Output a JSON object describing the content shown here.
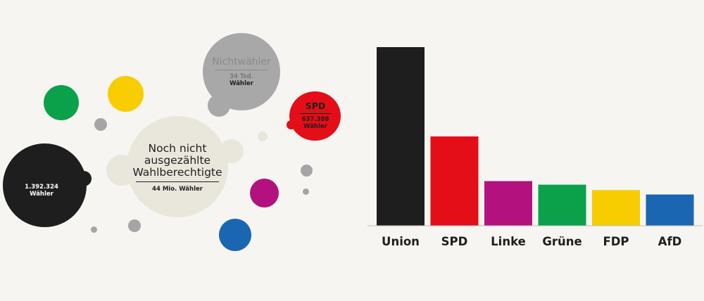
{
  "bubbles": {
    "nichtwaehler": {
      "title": "Nichtwähler",
      "value": "34 Tsd.",
      "unit": "Wähler"
    },
    "spd": {
      "title": "SPD",
      "value": "637.388",
      "unit": "Wähler"
    },
    "ausgezaehlt": {
      "value": "1.392.324",
      "unit": "Wähler"
    },
    "noch_nicht": {
      "title_lines": [
        "Noch nicht",
        "ausgezählte",
        "Wahlberechtigte"
      ],
      "value": "44 Mio. Wähler"
    }
  },
  "colors": {
    "union": "#1e1e1e",
    "spd": "#e30e17",
    "linke": "#b3127e",
    "gruene": "#0aa14a",
    "fdp": "#f7cd00",
    "afd": "#1a66b3",
    "nichtwaehler": "#a8a8a8",
    "noch_nicht": "#e9e6dc",
    "small_grey": "#a5a5a5"
  },
  "chart_data": {
    "type": "bar",
    "categories": [
      "Union",
      "SPD",
      "Linke",
      "Grüne",
      "FDP",
      "AfD"
    ],
    "values": [
      100,
      50,
      25,
      23,
      20,
      17.5
    ],
    "colors": [
      "#1e1e1e",
      "#e30e17",
      "#b3127e",
      "#0aa14a",
      "#f7cd00",
      "#1a66b3"
    ],
    "ylim": [
      0,
      100
    ],
    "grid": false,
    "title": "",
    "xlabel": "",
    "ylabel": ""
  }
}
